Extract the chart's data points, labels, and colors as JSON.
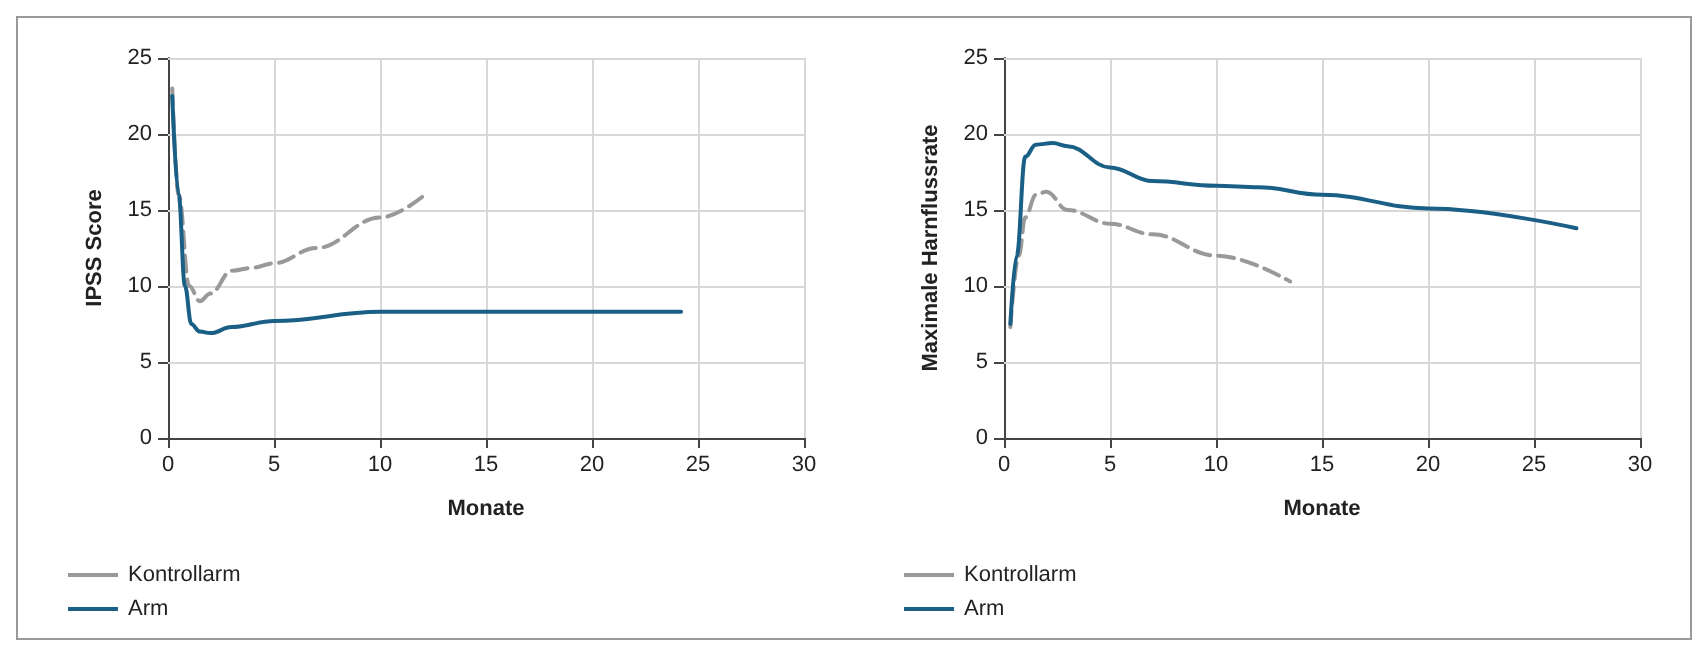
{
  "chart_data": [
    {
      "type": "line",
      "xlabel": "Monate",
      "ylabel": "IPSS Score",
      "xlim": [
        0,
        30
      ],
      "xticks": [
        0,
        5,
        10,
        15,
        20,
        25,
        30
      ],
      "ylim": [
        0,
        25
      ],
      "yticks": [
        0,
        5,
        10,
        15,
        20,
        25
      ],
      "grid": true,
      "legend": "bottom left",
      "marker": "none",
      "series": [
        {
          "name": "Kontrollarm",
          "color": "#999999",
          "line_style": "dashed",
          "x": [
            0.2,
            0.5,
            1,
            1.5,
            2,
            3,
            4,
            5,
            7,
            10,
            12.2
          ],
          "values": [
            23,
            16,
            10,
            9,
            9.5,
            11,
            11.2,
            11.5,
            12.5,
            14.5,
            16.1
          ]
        },
        {
          "name": "Arm",
          "color": "#1a5f85",
          "line_style": "solid",
          "x": [
            0.2,
            0.5,
            0.8,
            1.1,
            1.5,
            2,
            3,
            5,
            10,
            24.2
          ],
          "values": [
            22.5,
            16,
            10,
            7.5,
            7,
            6.9,
            7.3,
            7.7,
            8.3,
            8.3
          ]
        }
      ]
    },
    {
      "type": "line",
      "xlabel": "Monate",
      "ylabel": "Maximale Harnflussrate",
      "xlim": [
        0,
        30
      ],
      "xticks": [
        0,
        5,
        10,
        15,
        20,
        25,
        30
      ],
      "ylim": [
        0,
        25
      ],
      "yticks": [
        0,
        5,
        10,
        15,
        20,
        25
      ],
      "grid": true,
      "legend": "bottom left",
      "marker": "none",
      "series": [
        {
          "name": "Kontrollarm",
          "color": "#999999",
          "line_style": "dashed",
          "x": [
            0.3,
            0.7,
            1,
            1.5,
            2,
            3,
            5,
            7,
            10,
            13.5
          ],
          "values": [
            7.3,
            12,
            14.5,
            16,
            16.2,
            15,
            14.1,
            13.4,
            12,
            10.3
          ]
        },
        {
          "name": "Arm",
          "color": "#1a5f85",
          "line_style": "solid",
          "x": [
            0.3,
            0.6,
            1,
            1.5,
            2.3,
            3,
            5,
            7,
            10,
            12,
            15,
            20,
            27
          ],
          "values": [
            7.5,
            12,
            18.5,
            19.3,
            19.4,
            19.2,
            17.8,
            16.9,
            16.6,
            16.5,
            16,
            15.1,
            13.8
          ]
        }
      ]
    }
  ]
}
